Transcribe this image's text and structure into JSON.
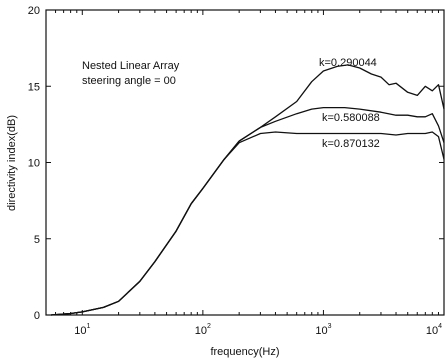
{
  "chart_data": {
    "type": "line",
    "title": "",
    "xlabel": "frequency(Hz)",
    "ylabel": "directivity index(dB)",
    "x_scale": "log",
    "xlim": [
      5,
      10000
    ],
    "ylim": [
      0,
      20
    ],
    "grid": false,
    "legend": "none",
    "x_ticks": [
      {
        "value": 10,
        "base": "10",
        "exp": "1"
      },
      {
        "value": 100,
        "base": "10",
        "exp": "2"
      },
      {
        "value": 1000,
        "base": "10",
        "exp": "3"
      },
      {
        "value": 10000,
        "base": "10",
        "exp": "4"
      }
    ],
    "y_ticks": [
      {
        "value": 0,
        "label": "0"
      },
      {
        "value": 5,
        "label": "5"
      },
      {
        "value": 10,
        "label": "10"
      },
      {
        "value": 15,
        "label": "15"
      },
      {
        "value": 20,
        "label": "20"
      }
    ],
    "annotations": [
      "Nested Linear Array",
      "steering angle = 00"
    ],
    "series": [
      {
        "name": "k=0.290044",
        "x": [
          5.5,
          8,
          10,
          15,
          20,
          30,
          40,
          60,
          80,
          100,
          150,
          200,
          300,
          400,
          600,
          800,
          1000,
          1300,
          1600,
          2000,
          2500,
          3000,
          3500,
          4000,
          5000,
          6000,
          7000,
          8000,
          9000,
          10000
        ],
        "y": [
          0.0,
          0.1,
          0.2,
          0.5,
          0.9,
          2.2,
          3.5,
          5.5,
          7.3,
          8.3,
          10.2,
          11.4,
          12.3,
          13.0,
          14.0,
          15.3,
          16.0,
          16.3,
          16.4,
          16.2,
          15.8,
          15.6,
          15.1,
          15.2,
          14.6,
          14.4,
          15.0,
          14.7,
          15.1,
          13.5
        ]
      },
      {
        "name": "k=0.580088",
        "x": [
          5.5,
          8,
          10,
          15,
          20,
          30,
          40,
          60,
          80,
          100,
          150,
          200,
          300,
          400,
          600,
          800,
          1000,
          1500,
          2000,
          3000,
          4000,
          5000,
          6000,
          7000,
          8000,
          9000,
          10000
        ],
        "y": [
          0.0,
          0.1,
          0.2,
          0.5,
          0.9,
          2.2,
          3.5,
          5.5,
          7.3,
          8.3,
          10.2,
          11.4,
          12.3,
          12.7,
          13.2,
          13.5,
          13.6,
          13.6,
          13.5,
          13.3,
          13.1,
          13.1,
          13.0,
          13.0,
          13.2,
          12.4,
          11.3
        ]
      },
      {
        "name": "k=0.870132",
        "x": [
          5.5,
          8,
          10,
          15,
          20,
          30,
          40,
          60,
          80,
          100,
          150,
          200,
          300,
          400,
          600,
          800,
          1000,
          1500,
          2000,
          3000,
          4000,
          5000,
          6000,
          7000,
          8000,
          9000,
          10000
        ],
        "y": [
          0.0,
          0.1,
          0.2,
          0.5,
          0.9,
          2.2,
          3.5,
          5.5,
          7.3,
          8.3,
          10.2,
          11.3,
          11.9,
          12.0,
          11.9,
          11.9,
          11.9,
          11.9,
          11.9,
          11.9,
          11.8,
          11.9,
          11.9,
          11.9,
          12.0,
          11.7,
          10.2
        ]
      }
    ]
  }
}
